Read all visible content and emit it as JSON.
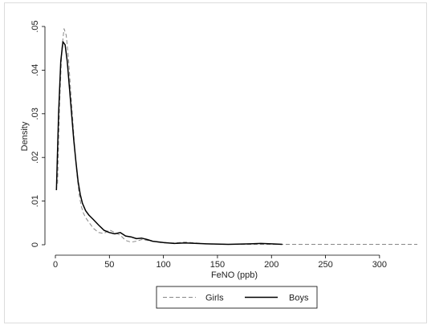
{
  "chart_data": {
    "type": "line",
    "title": "",
    "xlabel": "FeNO (ppb)",
    "ylabel": "Density",
    "xlim": [
      0,
      335
    ],
    "ylim": [
      0,
      0.05
    ],
    "x_ticks": [
      0,
      50,
      100,
      150,
      200,
      250,
      300
    ],
    "x_tick_labels": [
      "0",
      "50",
      "100",
      "150",
      "200",
      "250",
      "300"
    ],
    "y_ticks": [
      0,
      0.01,
      0.02,
      0.03,
      0.04,
      0.05
    ],
    "y_tick_labels": [
      "0",
      ".01",
      ".02",
      ".03",
      ".04",
      ".05"
    ],
    "grid": false,
    "legend_position": "bottom",
    "series": [
      {
        "name": "Girls",
        "line_style": "dashed",
        "color": "#888888",
        "x": [
          2,
          4,
          6,
          8,
          10,
          12,
          14,
          16,
          18,
          20,
          22,
          24,
          26,
          28,
          30,
          35,
          40,
          45,
          50,
          55,
          60,
          65,
          70,
          75,
          80,
          90,
          100,
          110,
          120,
          140,
          160,
          180,
          200,
          210,
          250,
          300,
          335
        ],
        "y": [
          0.014,
          0.033,
          0.045,
          0.0495,
          0.048,
          0.043,
          0.036,
          0.029,
          0.022,
          0.016,
          0.0115,
          0.0088,
          0.0072,
          0.0062,
          0.0055,
          0.0038,
          0.0028,
          0.0026,
          0.0034,
          0.0028,
          0.0022,
          0.001,
          0.0006,
          0.0008,
          0.0012,
          0.0008,
          0.0004,
          0.0004,
          0.0006,
          0.0002,
          0.0001,
          0.0001,
          0.0001,
          0.0001,
          0.0001,
          0.0001,
          0.0001
        ]
      },
      {
        "name": "Boys",
        "line_style": "solid",
        "color": "#000000",
        "x": [
          1,
          3,
          5,
          7,
          9,
          11,
          13,
          15,
          17,
          19,
          21,
          23,
          25,
          28,
          31,
          35,
          40,
          45,
          50,
          55,
          60,
          65,
          70,
          75,
          80,
          85,
          90,
          100,
          110,
          120,
          140,
          160,
          180,
          190,
          200,
          210
        ],
        "y": [
          0.0125,
          0.03,
          0.042,
          0.0465,
          0.0458,
          0.042,
          0.036,
          0.03,
          0.024,
          0.019,
          0.0145,
          0.0115,
          0.0095,
          0.0078,
          0.0068,
          0.0058,
          0.0045,
          0.0033,
          0.0028,
          0.0025,
          0.0028,
          0.002,
          0.0018,
          0.0014,
          0.0015,
          0.0012,
          0.0008,
          0.0005,
          0.0003,
          0.0004,
          0.0002,
          0.0001,
          0.0002,
          0.0003,
          0.0002,
          0.0001
        ]
      }
    ]
  }
}
